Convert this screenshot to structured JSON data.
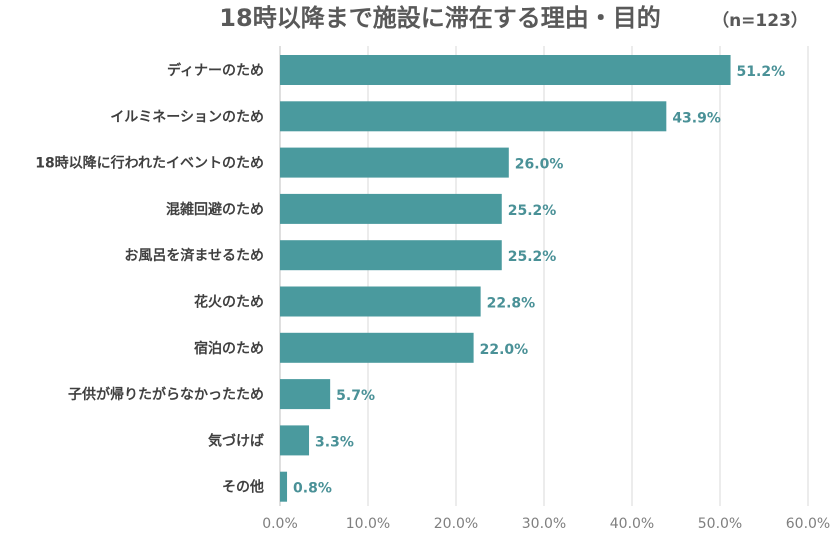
{
  "chart_data": {
    "type": "bar",
    "orientation": "horizontal",
    "title": "18時以降まで施設に滞在する理由・目的",
    "subtitle": "（n=123）",
    "categories": [
      "ディナーのため",
      "イルミネーションのため",
      "18時以降に行われたイベントのため",
      "混雑回避のため",
      "お風呂を済ませるため",
      "花火のため",
      "宿泊のため",
      "子供が帰りたがらなかったため",
      "気づけば",
      "その他"
    ],
    "values": [
      51.2,
      43.9,
      26.0,
      25.2,
      25.2,
      22.8,
      22.0,
      5.7,
      3.3,
      0.8
    ],
    "value_labels": [
      "51.2%",
      "43.9%",
      "26.0%",
      "25.2%",
      "25.2%",
      "22.8%",
      "22.0%",
      "5.7%",
      "3.3%",
      "0.8%"
    ],
    "xlim": [
      0,
      60
    ],
    "xticks": [
      0,
      10,
      20,
      30,
      40,
      50,
      60
    ],
    "xtick_labels": [
      "0.0%",
      "10.0%",
      "20.0%",
      "30.0%",
      "40.0%",
      "50.0%",
      "60.0%"
    ],
    "xlabel": "",
    "ylabel": "",
    "grid": true,
    "legend": "none",
    "bar_color": "#4a9a9e",
    "label_color": "#4a9197"
  }
}
